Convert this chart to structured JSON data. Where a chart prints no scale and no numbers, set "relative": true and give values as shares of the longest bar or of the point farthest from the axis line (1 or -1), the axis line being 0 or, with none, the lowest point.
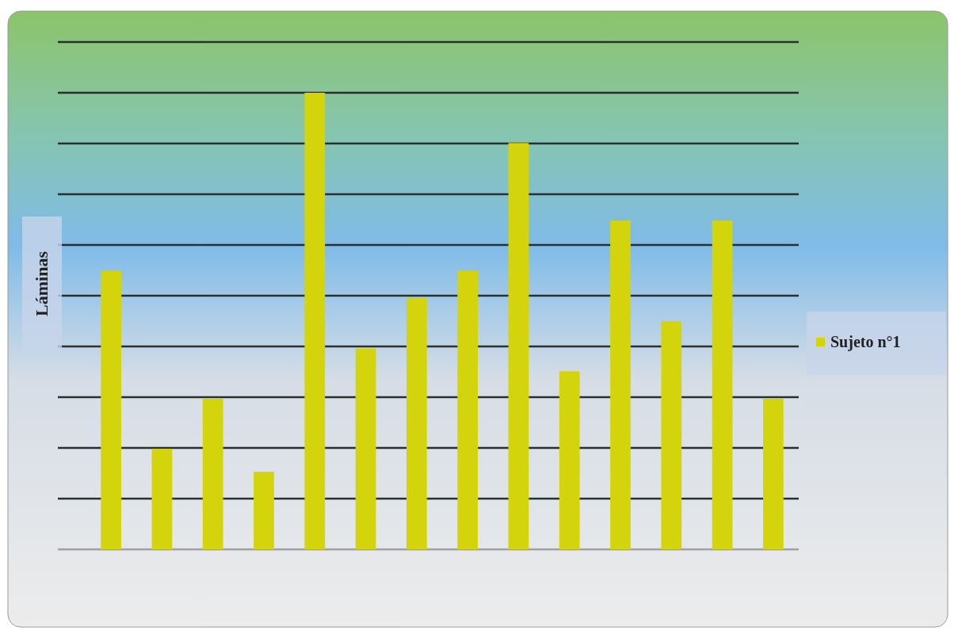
{
  "chart_data": {
    "type": "bar",
    "relative": true,
    "ylabel": "Láminas",
    "categories": [
      null,
      null,
      null,
      null,
      null,
      null,
      null,
      null,
      null,
      null,
      null,
      null,
      null,
      null
    ],
    "series": [
      {
        "name": "Sujeto n°1",
        "color": "#d4d40c",
        "values": [
          0.61,
          0.22,
          0.33,
          0.17,
          1,
          0.44,
          0.55,
          0.61,
          0.89,
          0.39,
          0.72,
          0.5,
          0.72,
          0.33
        ]
      }
    ],
    "grid": true,
    "legend": "right"
  }
}
